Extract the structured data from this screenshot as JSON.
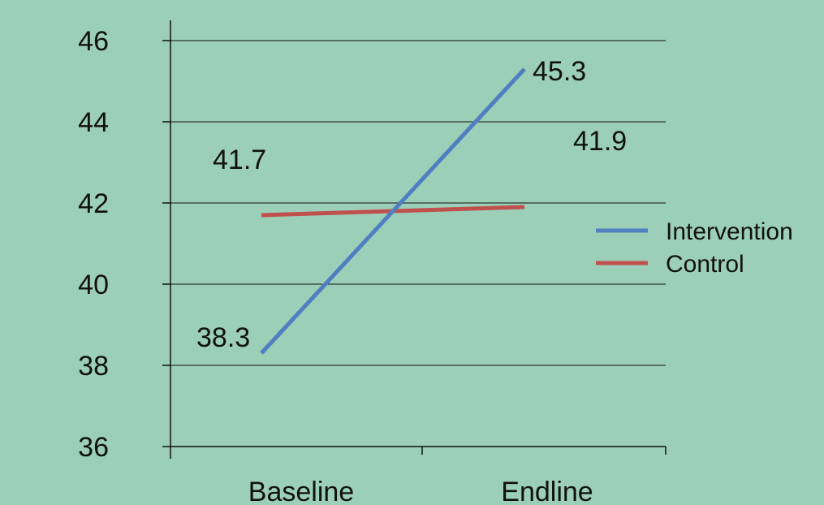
{
  "chart_data": {
    "type": "line",
    "categories": [
      "Baseline",
      "Endline"
    ],
    "series": [
      {
        "name": "Intervention",
        "values": [
          38.3,
          45.3
        ],
        "labels": [
          "38.3",
          "45.3"
        ],
        "color": "#4f7fc0"
      },
      {
        "name": "Control",
        "values": [
          41.7,
          41.9
        ],
        "labels": [
          "41.7",
          "41.9"
        ],
        "color": "#c0504d"
      }
    ],
    "ylim": [
      36,
      46
    ],
    "yticks": [
      "36",
      "38",
      "40",
      "42",
      "44",
      "46"
    ],
    "grid": true,
    "legend_position": "right",
    "background_color": "#9ccfb8",
    "axis_color": "#111111"
  }
}
